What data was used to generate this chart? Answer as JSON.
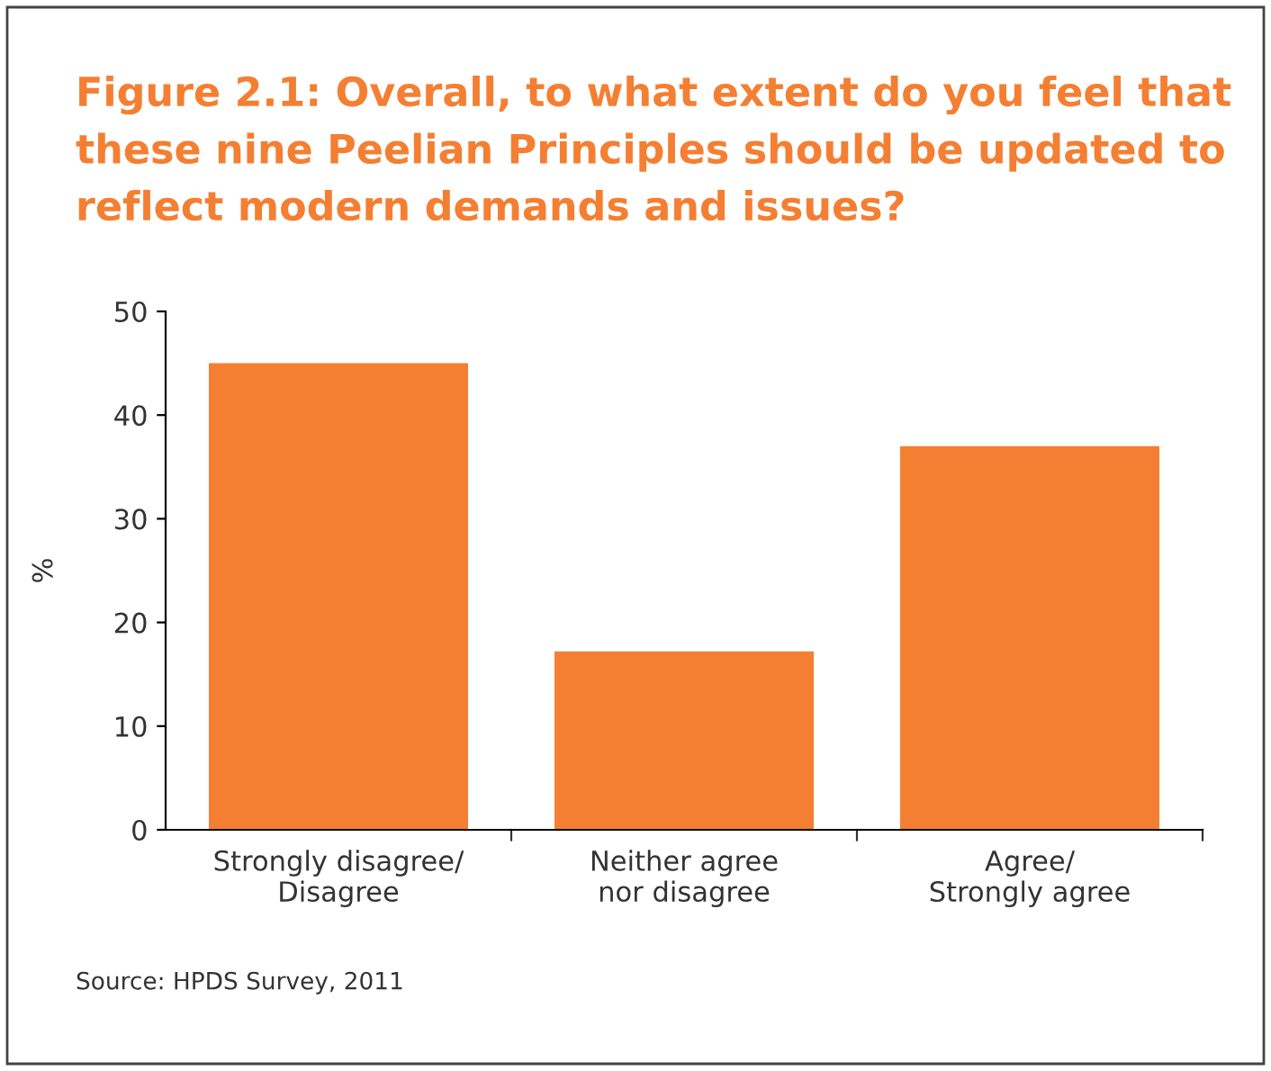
{
  "chart_data": {
    "type": "bar",
    "title": "Figure 2.1: Overall, to what extent do you feel that\nthese nine Peelian Principles should be updated to\nreflect modern demands and issues?",
    "ylabel": "%",
    "categories": [
      "Strongly disagree/\nDisagree",
      "Neither agree\nnor disagree",
      "Agree/\nStrongly agree"
    ],
    "values": [
      45,
      17.2,
      37
    ],
    "color": "#f47f32",
    "ylim": [
      0,
      50
    ],
    "yticks": [
      0,
      10,
      20,
      30,
      40,
      50
    ],
    "grid": false,
    "legend": false,
    "annotations": [
      "Source: HPDS Survey, 2011"
    ]
  }
}
